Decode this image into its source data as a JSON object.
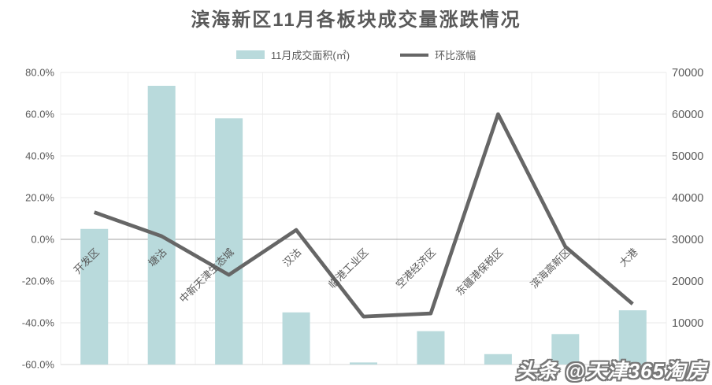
{
  "watermark": {
    "text": "头条 @天津365淘房"
  },
  "chart_data": {
    "type": "bar",
    "combo": true,
    "title": "滨海新区11月各板块成交量涨跌情况",
    "categories": [
      "开发区",
      "塘沽",
      "中新天津生态城",
      "汉沽",
      "临港工业区",
      "空港经济区",
      "东疆港保税区",
      "滨海高新区",
      "大港"
    ],
    "series": [
      {
        "name": "11月成交面积(㎡)",
        "type": "bar",
        "axis": "right",
        "color": "#b9dadc",
        "values": [
          32500,
          66800,
          59000,
          12500,
          500,
          8000,
          2500,
          7300,
          13000
        ]
      },
      {
        "name": "环比涨幅",
        "type": "line",
        "axis": "left",
        "color": "#666666",
        "values_percent": [
          13,
          1.5,
          -17,
          4.5,
          -37,
          -35.5,
          60,
          -3.5,
          -31
        ]
      }
    ],
    "left_axis": {
      "unit": "%",
      "min": -60,
      "max": 80,
      "step": 20,
      "tick_labels": [
        "80.0%",
        "60.0%",
        "40.0%",
        "20.0%",
        "0.0%",
        "-20.0%",
        "-40.0%",
        "-60.0%"
      ]
    },
    "right_axis": {
      "min": 0,
      "max": 70000,
      "step": 10000,
      "tick_labels": [
        "70000",
        "60000",
        "50000",
        "40000",
        "30000",
        "20000",
        "10000",
        "0"
      ]
    },
    "grid": true,
    "legend_position": "top",
    "colors": {
      "text": "#595959",
      "gridline": "#e9e9e9",
      "gridline_vertical": "#efefef",
      "zero_axis": "#a3a3a3",
      "bottom_line": "#d9d9d9"
    }
  }
}
